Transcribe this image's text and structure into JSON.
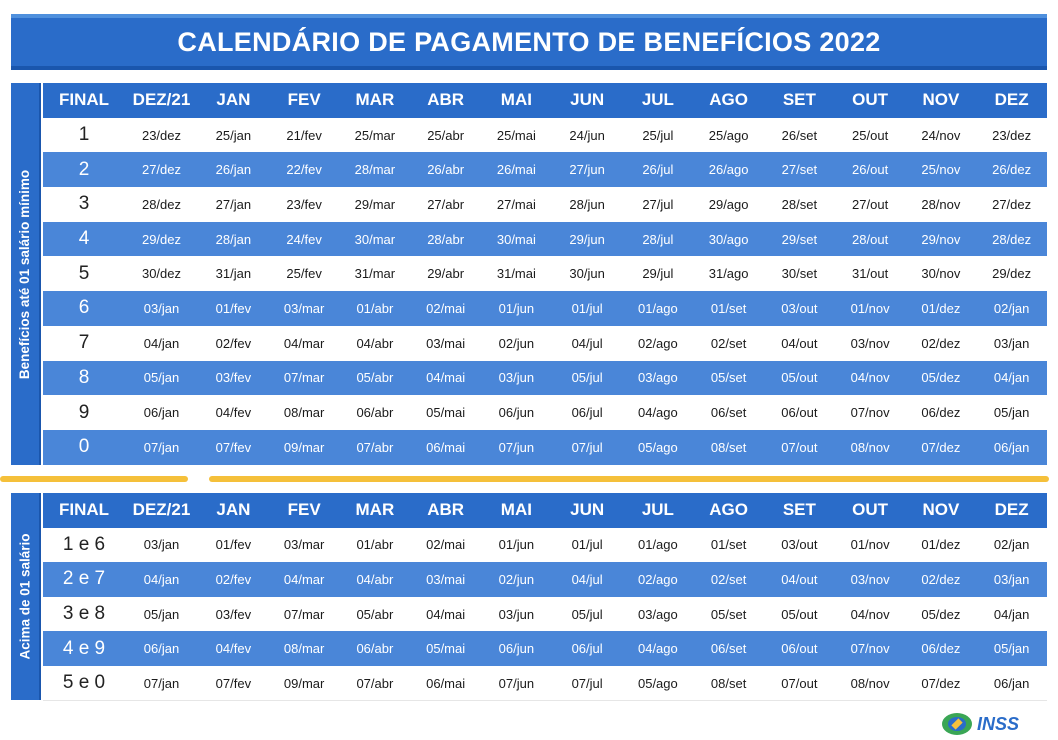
{
  "title": "CALENDÁRIO DE PAGAMENTO DE BENEFÍCIOS 2022",
  "logo_text": "INSS",
  "columns": [
    "FINAL",
    "DEZ/21",
    "JAN",
    "FEV",
    "MAR",
    "ABR",
    "MAI",
    "JUN",
    "JUL",
    "AGO",
    "SET",
    "OUT",
    "NOV",
    "DEZ"
  ],
  "section1": {
    "label": "Benefícios até 01 salário mínimo",
    "rows": [
      [
        "1",
        "23/dez",
        "25/jan",
        "21/fev",
        "25/mar",
        "25/abr",
        "25/mai",
        "24/jun",
        "25/jul",
        "25/ago",
        "26/set",
        "25/out",
        "24/nov",
        "23/dez"
      ],
      [
        "2",
        "27/dez",
        "26/jan",
        "22/fev",
        "28/mar",
        "26/abr",
        "26/mai",
        "27/jun",
        "26/jul",
        "26/ago",
        "27/set",
        "26/out",
        "25/nov",
        "26/dez"
      ],
      [
        "3",
        "28/dez",
        "27/jan",
        "23/fev",
        "29/mar",
        "27/abr",
        "27/mai",
        "28/jun",
        "27/jul",
        "29/ago",
        "28/set",
        "27/out",
        "28/nov",
        "27/dez"
      ],
      [
        "4",
        "29/dez",
        "28/jan",
        "24/fev",
        "30/mar",
        "28/abr",
        "30/mai",
        "29/jun",
        "28/jul",
        "30/ago",
        "29/set",
        "28/out",
        "29/nov",
        "28/dez"
      ],
      [
        "5",
        "30/dez",
        "31/jan",
        "25/fev",
        "31/mar",
        "29/abr",
        "31/mai",
        "30/jun",
        "29/jul",
        "31/ago",
        "30/set",
        "31/out",
        "30/nov",
        "29/dez"
      ],
      [
        "6",
        "03/jan",
        "01/fev",
        "03/mar",
        "01/abr",
        "02/mai",
        "01/jun",
        "01/jul",
        "01/ago",
        "01/set",
        "03/out",
        "01/nov",
        "01/dez",
        "02/jan"
      ],
      [
        "7",
        "04/jan",
        "02/fev",
        "04/mar",
        "04/abr",
        "03/mai",
        "02/jun",
        "04/jul",
        "02/ago",
        "02/set",
        "04/out",
        "03/nov",
        "02/dez",
        "03/jan"
      ],
      [
        "8",
        "05/jan",
        "03/fev",
        "07/mar",
        "05/abr",
        "04/mai",
        "03/jun",
        "05/jul",
        "03/ago",
        "05/set",
        "05/out",
        "04/nov",
        "05/dez",
        "04/jan"
      ],
      [
        "9",
        "06/jan",
        "04/fev",
        "08/mar",
        "06/abr",
        "05/mai",
        "06/jun",
        "06/jul",
        "04/ago",
        "06/set",
        "06/out",
        "07/nov",
        "06/dez",
        "05/jan"
      ],
      [
        "0",
        "07/jan",
        "07/fev",
        "09/mar",
        "07/abr",
        "06/mai",
        "07/jun",
        "07/jul",
        "05/ago",
        "08/set",
        "07/out",
        "08/nov",
        "07/dez",
        "06/jan"
      ]
    ]
  },
  "section2": {
    "label": "Acima de 01 salário",
    "rows": [
      [
        "1 e 6",
        "03/jan",
        "01/fev",
        "03/mar",
        "01/abr",
        "02/mai",
        "01/jun",
        "01/jul",
        "01/ago",
        "01/set",
        "03/out",
        "01/nov",
        "01/dez",
        "02/jan"
      ],
      [
        "2 e 7",
        "04/jan",
        "02/fev",
        "04/mar",
        "04/abr",
        "03/mai",
        "02/jun",
        "04/jul",
        "02/ago",
        "02/set",
        "04/out",
        "03/nov",
        "02/dez",
        "03/jan"
      ],
      [
        "3 e 8",
        "05/jan",
        "03/fev",
        "07/mar",
        "05/abr",
        "04/mai",
        "03/jun",
        "05/jul",
        "03/ago",
        "05/set",
        "05/out",
        "04/nov",
        "05/dez",
        "04/jan"
      ],
      [
        "4 e 9",
        "06/jan",
        "04/fev",
        "08/mar",
        "06/abr",
        "05/mai",
        "06/jun",
        "06/jul",
        "04/ago",
        "06/set",
        "06/out",
        "07/nov",
        "06/dez",
        "05/jan"
      ],
      [
        "5 e 0",
        "07/jan",
        "07/fev",
        "09/mar",
        "07/abr",
        "06/mai",
        "07/jun",
        "07/jul",
        "05/ago",
        "08/set",
        "07/out",
        "08/nov",
        "07/dez",
        "06/jan"
      ]
    ]
  }
}
